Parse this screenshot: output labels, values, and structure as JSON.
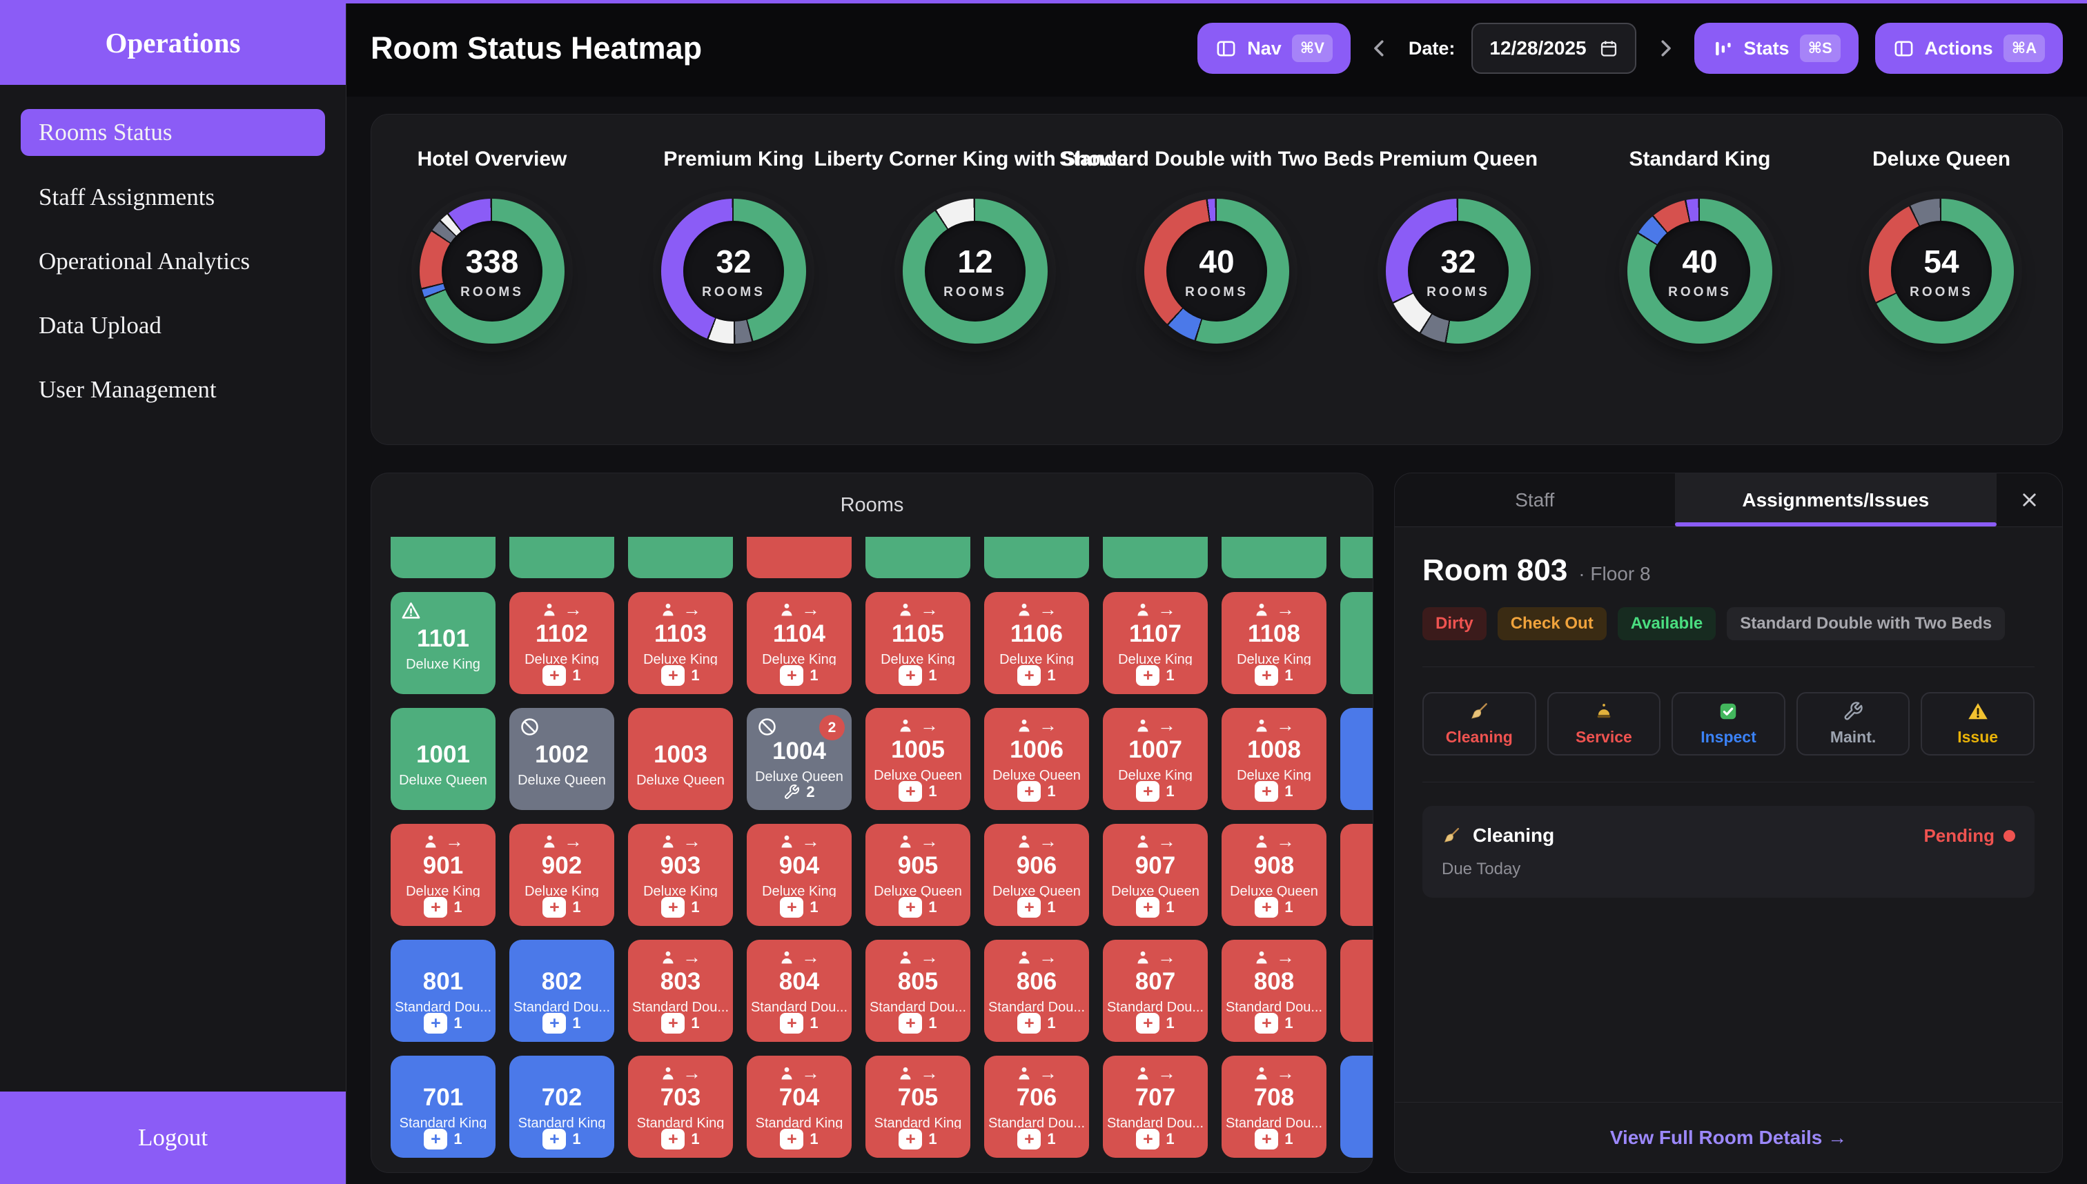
{
  "palette": {
    "green": "#4EAE7D",
    "red": "#D6514E",
    "blue": "#4B79E9",
    "gray": "#6E7484",
    "white": "#F2F2F2",
    "purple": "#8B5CF6",
    "track": "#151518"
  },
  "sidebar": {
    "title": "Operations",
    "items": [
      {
        "label": "Rooms Status",
        "active": true
      },
      {
        "label": "Staff Assignments",
        "active": false
      },
      {
        "label": "Operational Analytics",
        "active": false
      },
      {
        "label": "Data Upload",
        "active": false
      },
      {
        "label": "User Management",
        "active": false
      }
    ],
    "logout": "Logout"
  },
  "header": {
    "title": "Room Status Heatmap",
    "nav_button": {
      "label": "Nav",
      "kbd": "⌘V"
    },
    "date_label": "Date:",
    "date_value": "12/28/2025",
    "stats_button": {
      "label": "Stats",
      "kbd": "⌘S"
    },
    "actions_button": {
      "label": "Actions",
      "kbd": "⌘A"
    }
  },
  "chart_data": [
    {
      "type": "donut",
      "title": "Hotel Overview",
      "center_value": "338",
      "center_label": "ROOMS",
      "total_rooms": 338,
      "segments": [
        {
          "color": "green",
          "pct": 67.5
        },
        {
          "color": "blue",
          "pct": 2
        },
        {
          "color": "red",
          "pct": 13
        },
        {
          "color": "gray",
          "pct": 2.8
        },
        {
          "color": "white",
          "pct": 2.2
        },
        {
          "color": "purple",
          "pct": 10
        }
      ]
    },
    {
      "type": "donut",
      "title": "Premium King",
      "center_value": "32",
      "center_label": "ROOMS",
      "total_rooms": 32,
      "segments": [
        {
          "color": "green",
          "pct": 46
        },
        {
          "color": "gray",
          "pct": 4
        },
        {
          "color": "white",
          "pct": 6
        },
        {
          "color": "purple",
          "pct": 44
        }
      ]
    },
    {
      "type": "donut",
      "title": "Liberty Corner King with Shower",
      "center_value": "12",
      "center_label": "ROOMS",
      "total_rooms": 12,
      "segments": [
        {
          "color": "green",
          "pct": 91
        },
        {
          "color": "white",
          "pct": 9
        }
      ]
    },
    {
      "type": "donut",
      "title": "Standard Double with Two Beds",
      "center_value": "40",
      "center_label": "ROOMS",
      "total_rooms": 40,
      "segments": [
        {
          "color": "green",
          "pct": 55
        },
        {
          "color": "blue",
          "pct": 7
        },
        {
          "color": "red",
          "pct": 36
        },
        {
          "color": "purple",
          "pct": 2
        }
      ]
    },
    {
      "type": "donut",
      "title": "Premium Queen",
      "center_value": "32",
      "center_label": "ROOMS",
      "total_rooms": 32,
      "segments": [
        {
          "color": "green",
          "pct": 53
        },
        {
          "color": "gray",
          "pct": 6
        },
        {
          "color": "white",
          "pct": 9
        },
        {
          "color": "purple",
          "pct": 32
        }
      ]
    },
    {
      "type": "donut",
      "title": "Standard King",
      "center_value": "40",
      "center_label": "ROOMS",
      "total_rooms": 40,
      "segments": [
        {
          "color": "green",
          "pct": 84
        },
        {
          "color": "blue",
          "pct": 5
        },
        {
          "color": "red",
          "pct": 8
        },
        {
          "color": "purple",
          "pct": 3
        }
      ]
    },
    {
      "type": "donut",
      "title": "Deluxe Queen",
      "center_value": "54",
      "center_label": "ROOMS",
      "total_rooms": 54,
      "segments": [
        {
          "color": "green",
          "pct": 68
        },
        {
          "color": "red",
          "pct": 25
        },
        {
          "color": "gray",
          "pct": 7
        }
      ]
    }
  ],
  "rooms_panel": {
    "title": "Rooms",
    "partial_row": [
      "green",
      "green",
      "green",
      "red",
      "green",
      "green",
      "green",
      "green",
      "green"
    ],
    "rows": [
      [
        {
          "number": "1101",
          "type_label": "Deluxe King",
          "color": "green",
          "icon": "warning"
        },
        {
          "number": "1102",
          "type_label": "Deluxe King",
          "color": "red",
          "icon": "checkout",
          "chip": {
            "style": "plus",
            "count": "1"
          }
        },
        {
          "number": "1103",
          "type_label": "Deluxe King",
          "color": "red",
          "icon": "checkout",
          "chip": {
            "style": "plus",
            "count": "1"
          }
        },
        {
          "number": "1104",
          "type_label": "Deluxe King",
          "color": "red",
          "icon": "checkout",
          "chip": {
            "style": "plus",
            "count": "1"
          }
        },
        {
          "number": "1105",
          "type_label": "Deluxe King",
          "color": "red",
          "icon": "checkout",
          "chip": {
            "style": "plus",
            "count": "1"
          }
        },
        {
          "number": "1106",
          "type_label": "Deluxe King",
          "color": "red",
          "icon": "checkout",
          "chip": {
            "style": "plus",
            "count": "1"
          }
        },
        {
          "number": "1107",
          "type_label": "Deluxe King",
          "color": "red",
          "icon": "checkout",
          "chip": {
            "style": "plus",
            "count": "1"
          }
        },
        {
          "number": "1108",
          "type_label": "Deluxe King",
          "color": "red",
          "icon": "checkout",
          "chip": {
            "style": "plus",
            "count": "1"
          }
        },
        {
          "sliver": true,
          "color": "green"
        }
      ],
      [
        {
          "number": "1001",
          "type_label": "Deluxe Queen",
          "color": "green"
        },
        {
          "number": "1002",
          "type_label": "Deluxe Queen",
          "color": "gray",
          "icon": "blocked"
        },
        {
          "number": "1003",
          "type_label": "Deluxe Queen",
          "color": "red"
        },
        {
          "number": "1004",
          "type_label": "Deluxe Queen",
          "color": "gray",
          "icon": "blocked",
          "corner_badge": "2",
          "chip": {
            "style": "wrench",
            "count": "2"
          }
        },
        {
          "number": "1005",
          "type_label": "Deluxe Queen",
          "color": "red",
          "icon": "checkout",
          "chip": {
            "style": "plus",
            "count": "1"
          }
        },
        {
          "number": "1006",
          "type_label": "Deluxe Queen",
          "color": "red",
          "icon": "checkout",
          "chip": {
            "style": "plus",
            "count": "1"
          }
        },
        {
          "number": "1007",
          "type_label": "Deluxe King",
          "color": "red",
          "icon": "checkout",
          "chip": {
            "style": "plus",
            "count": "1"
          }
        },
        {
          "number": "1008",
          "type_label": "Deluxe King",
          "color": "red",
          "icon": "checkout",
          "chip": {
            "style": "plus",
            "count": "1"
          }
        },
        {
          "sliver": true,
          "color": "blue"
        }
      ],
      [
        {
          "number": "901",
          "type_label": "Deluxe King",
          "color": "red",
          "icon": "checkout",
          "chip": {
            "style": "plus",
            "count": "1"
          }
        },
        {
          "number": "902",
          "type_label": "Deluxe King",
          "color": "red",
          "icon": "checkout",
          "chip": {
            "style": "plus",
            "count": "1"
          }
        },
        {
          "number": "903",
          "type_label": "Deluxe King",
          "color": "red",
          "icon": "checkout",
          "chip": {
            "style": "plus",
            "count": "1"
          }
        },
        {
          "number": "904",
          "type_label": "Deluxe King",
          "color": "red",
          "icon": "checkout",
          "chip": {
            "style": "plus",
            "count": "1"
          }
        },
        {
          "number": "905",
          "type_label": "Deluxe Queen",
          "color": "red",
          "icon": "checkout",
          "chip": {
            "style": "plus",
            "count": "1"
          }
        },
        {
          "number": "906",
          "type_label": "Deluxe Queen",
          "color": "red",
          "icon": "checkout",
          "chip": {
            "style": "plus",
            "count": "1"
          }
        },
        {
          "number": "907",
          "type_label": "Deluxe Queen",
          "color": "red",
          "icon": "checkout",
          "chip": {
            "style": "plus",
            "count": "1"
          }
        },
        {
          "number": "908",
          "type_label": "Deluxe Queen",
          "color": "red",
          "icon": "checkout",
          "chip": {
            "style": "plus",
            "count": "1"
          }
        },
        {
          "sliver": true,
          "color": "red"
        }
      ],
      [
        {
          "number": "801",
          "type_label": "Standard Dou...",
          "color": "blue",
          "chip": {
            "style": "plus",
            "count": "1"
          }
        },
        {
          "number": "802",
          "type_label": "Standard Dou...",
          "color": "blue",
          "chip": {
            "style": "plus",
            "count": "1"
          }
        },
        {
          "number": "803",
          "type_label": "Standard Dou...",
          "color": "red",
          "icon": "checkout",
          "chip": {
            "style": "plus",
            "count": "1"
          }
        },
        {
          "number": "804",
          "type_label": "Standard Dou...",
          "color": "red",
          "icon": "checkout",
          "chip": {
            "style": "plus",
            "count": "1"
          }
        },
        {
          "number": "805",
          "type_label": "Standard Dou...",
          "color": "red",
          "icon": "checkout",
          "chip": {
            "style": "plus",
            "count": "1"
          }
        },
        {
          "number": "806",
          "type_label": "Standard Dou...",
          "color": "red",
          "icon": "checkout",
          "chip": {
            "style": "plus",
            "count": "1"
          }
        },
        {
          "number": "807",
          "type_label": "Standard Dou...",
          "color": "red",
          "icon": "checkout",
          "chip": {
            "style": "plus",
            "count": "1"
          }
        },
        {
          "number": "808",
          "type_label": "Standard Dou...",
          "color": "red",
          "icon": "checkout",
          "chip": {
            "style": "plus",
            "count": "1"
          }
        },
        {
          "sliver": true,
          "color": "red"
        }
      ],
      [
        {
          "number": "701",
          "type_label": "Standard King",
          "color": "blue",
          "chip": {
            "style": "plus",
            "count": "1"
          }
        },
        {
          "number": "702",
          "type_label": "Standard King",
          "color": "blue",
          "chip": {
            "style": "plus",
            "count": "1"
          }
        },
        {
          "number": "703",
          "type_label": "Standard King",
          "color": "red",
          "icon": "checkout",
          "chip": {
            "style": "plus",
            "count": "1"
          }
        },
        {
          "number": "704",
          "type_label": "Standard King",
          "color": "red",
          "icon": "checkout",
          "chip": {
            "style": "plus",
            "count": "1"
          }
        },
        {
          "number": "705",
          "type_label": "Standard King",
          "color": "red",
          "icon": "checkout",
          "chip": {
            "style": "plus",
            "count": "1"
          }
        },
        {
          "number": "706",
          "type_label": "Standard Dou...",
          "color": "red",
          "icon": "checkout",
          "chip": {
            "style": "plus",
            "count": "1"
          }
        },
        {
          "number": "707",
          "type_label": "Standard Dou...",
          "color": "red",
          "icon": "checkout",
          "chip": {
            "style": "plus",
            "count": "1"
          }
        },
        {
          "number": "708",
          "type_label": "Standard Dou...",
          "color": "red",
          "icon": "checkout",
          "chip": {
            "style": "plus",
            "count": "1"
          }
        },
        {
          "sliver": true,
          "color": "blue"
        }
      ]
    ]
  },
  "detail_panel": {
    "tabs": [
      {
        "label": "Staff",
        "active": false
      },
      {
        "label": "Assignments/Issues",
        "active": true
      }
    ],
    "room_title": "Room 803",
    "floor": "· Floor 8",
    "badges": [
      {
        "label": "Dirty",
        "fg": "#EF5350",
        "bg": "#3B1B1B"
      },
      {
        "label": "Check Out",
        "fg": "#F0A33C",
        "bg": "#3A2B13"
      },
      {
        "label": "Available",
        "fg": "#4ADE80",
        "bg": "#172B20"
      },
      {
        "label": "Standard Double with Two Beds",
        "fg": "#A8A8AE",
        "bg": "#242428"
      }
    ],
    "actions": [
      {
        "label": "Cleaning",
        "icon": "broom",
        "color": "#EF5350"
      },
      {
        "label": "Service",
        "icon": "bell",
        "color": "#EF5350"
      },
      {
        "label": "Inspect",
        "icon": "check",
        "color": "#3B82F6"
      },
      {
        "label": "Maint.",
        "icon": "wrench",
        "color": "#9CA3AF"
      },
      {
        "label": "Issue",
        "icon": "warning_solid",
        "color": "#EAB308"
      }
    ],
    "tasks": [
      {
        "icon": "broom",
        "title": "Cleaning",
        "status": "Pending",
        "status_color": "#EF5350",
        "due": "Due Today"
      }
    ],
    "footer_link": "View Full Room Details →"
  }
}
